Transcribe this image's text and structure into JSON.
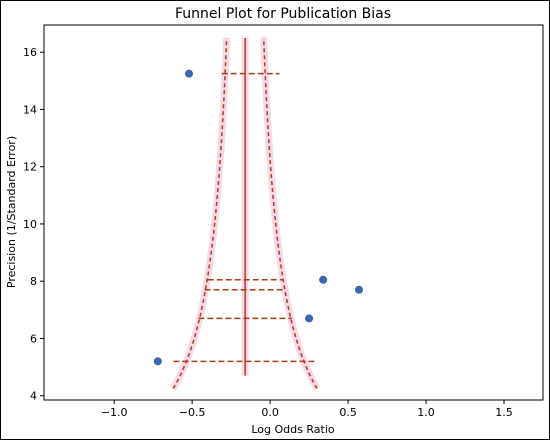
{
  "chart_data": {
    "type": "scatter",
    "title": "Funnel Plot for Publication Bias",
    "xlabel": "Log Odds Ratio",
    "ylabel": "Precision (1/Standard Error)",
    "xlim": [
      -1.45,
      1.75
    ],
    "ylim": [
      3.85,
      16.95
    ],
    "xticks": [
      -1.0,
      -0.5,
      0.0,
      0.5,
      1.0,
      1.5
    ],
    "xtick_labels": [
      "−1.0",
      "−0.5",
      "0.0",
      "0.5",
      "1.0",
      "1.5"
    ],
    "yticks": [
      4,
      6,
      8,
      10,
      12,
      14,
      16
    ],
    "ytick_labels": [
      "4",
      "6",
      "8",
      "10",
      "12",
      "14",
      "16"
    ],
    "grid": false,
    "pooled_estimate": -0.16,
    "studies": [
      {
        "log_or": -0.52,
        "precision": 15.25,
        "ci_low": -0.31,
        "ci_high": 0.06
      },
      {
        "log_or": 0.34,
        "precision": 8.05,
        "ci_low": -0.4,
        "ci_high": 0.08
      },
      {
        "log_or": 0.57,
        "precision": 7.7,
        "ci_low": -0.42,
        "ci_high": 0.09
      },
      {
        "log_or": 0.25,
        "precision": 6.7,
        "ci_low": -0.46,
        "ci_high": 0.14
      },
      {
        "log_or": -0.72,
        "precision": 5.2,
        "ci_low": -0.62,
        "ci_high": 0.29
      }
    ],
    "funnel": {
      "center": -0.16,
      "z": 1.96,
      "precision_range": [
        4.25,
        16.5
      ]
    },
    "colors": {
      "points": "#3a66b0",
      "pooled_line": "#c0392b",
      "funnel": "#a8401e",
      "ci_lines": "#a8401e",
      "funnel_halo": "#f8d8e6",
      "background": "#ffffff"
    }
  }
}
